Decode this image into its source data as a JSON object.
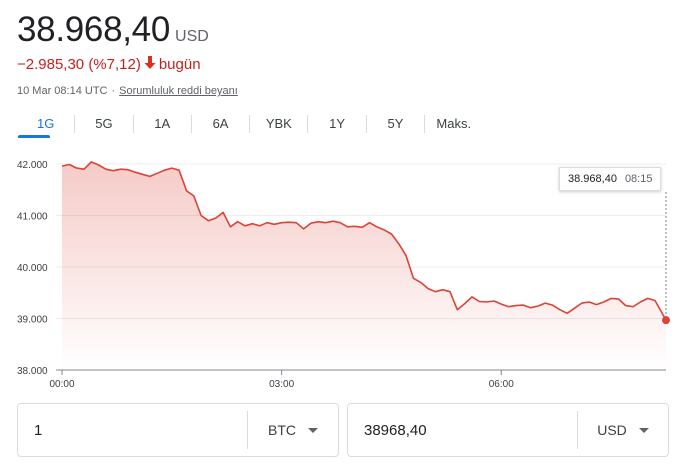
{
  "quote": {
    "price": "38.968,40",
    "currency": "USD",
    "change": "−2.985,30 (%7,12)",
    "change_direction": "down",
    "change_period": "bugün",
    "timestamp": "10 Mar 08:14 UTC",
    "separator": "·",
    "disclaimer": "Sorumluluk reddi beyanı",
    "down_color": "#d93025"
  },
  "tabs": [
    {
      "label": "1G",
      "active": true
    },
    {
      "label": "5G"
    },
    {
      "label": "1A"
    },
    {
      "label": "6A"
    },
    {
      "label": "YBK"
    },
    {
      "label": "1Y"
    },
    {
      "label": "5Y"
    },
    {
      "label": "Maks."
    }
  ],
  "tooltip": {
    "value": "38.968,40",
    "time": "08:15"
  },
  "chart_data": {
    "type": "area",
    "ylim": [
      38000,
      42000
    ],
    "y_ticks": [
      42000,
      41000,
      40000,
      39000,
      38000
    ],
    "y_tick_labels": [
      "42.000",
      "41.000",
      "40.000",
      "39.000",
      "38.000"
    ],
    "xlim": [
      0,
      8.25
    ],
    "x_ticks": [
      0,
      3,
      6
    ],
    "x_tick_labels": [
      "00:00",
      "03:00",
      "06:00"
    ],
    "grid": true,
    "color": "#db4437",
    "series": [
      {
        "x": [
          0,
          0.1,
          0.2,
          0.3,
          0.4,
          0.5,
          0.6,
          0.7,
          0.8,
          0.9,
          1.0,
          1.1,
          1.2,
          1.3,
          1.4,
          1.5,
          1.6,
          1.7,
          1.8,
          1.9,
          2.0,
          2.1,
          2.2,
          2.3,
          2.4,
          2.5,
          2.6,
          2.7,
          2.8,
          2.9,
          3.0,
          3.1,
          3.2,
          3.3,
          3.4,
          3.5,
          3.6,
          3.7,
          3.8,
          3.9,
          4.0,
          4.1,
          4.2,
          4.3,
          4.4,
          4.5,
          4.6,
          4.7,
          4.8,
          4.9,
          5.0,
          5.1,
          5.2,
          5.3,
          5.4,
          5.5,
          5.6,
          5.7,
          5.8,
          5.9,
          6.0,
          6.1,
          6.2,
          6.3,
          6.4,
          6.5,
          6.6,
          6.7,
          6.8,
          6.9,
          7.0,
          7.1,
          7.2,
          7.3,
          7.4,
          7.5,
          7.6,
          7.7,
          7.8,
          7.9,
          8.0,
          8.1,
          8.25
        ],
        "y": [
          41960,
          41990,
          41920,
          41900,
          42040,
          41980,
          41900,
          41870,
          41900,
          41890,
          41840,
          41800,
          41760,
          41820,
          41880,
          41920,
          41880,
          41480,
          41380,
          41000,
          40900,
          40950,
          41060,
          40780,
          40880,
          40800,
          40840,
          40800,
          40860,
          40830,
          40860,
          40870,
          40860,
          40740,
          40850,
          40880,
          40860,
          40890,
          40860,
          40780,
          40790,
          40770,
          40860,
          40780,
          40720,
          40640,
          40450,
          40220,
          39780,
          39700,
          39580,
          39520,
          39560,
          39520,
          39170,
          39290,
          39420,
          39330,
          39320,
          39340,
          39280,
          39230,
          39250,
          39260,
          39210,
          39240,
          39300,
          39260,
          39170,
          39100,
          39200,
          39300,
          39320,
          39270,
          39320,
          39390,
          39380,
          39250,
          39230,
          39320,
          39390,
          39350,
          38968
        ]
      }
    ]
  },
  "converter": {
    "from_value": "1",
    "from_currency": "BTC",
    "to_value": "38968,40",
    "to_currency": "USD"
  }
}
